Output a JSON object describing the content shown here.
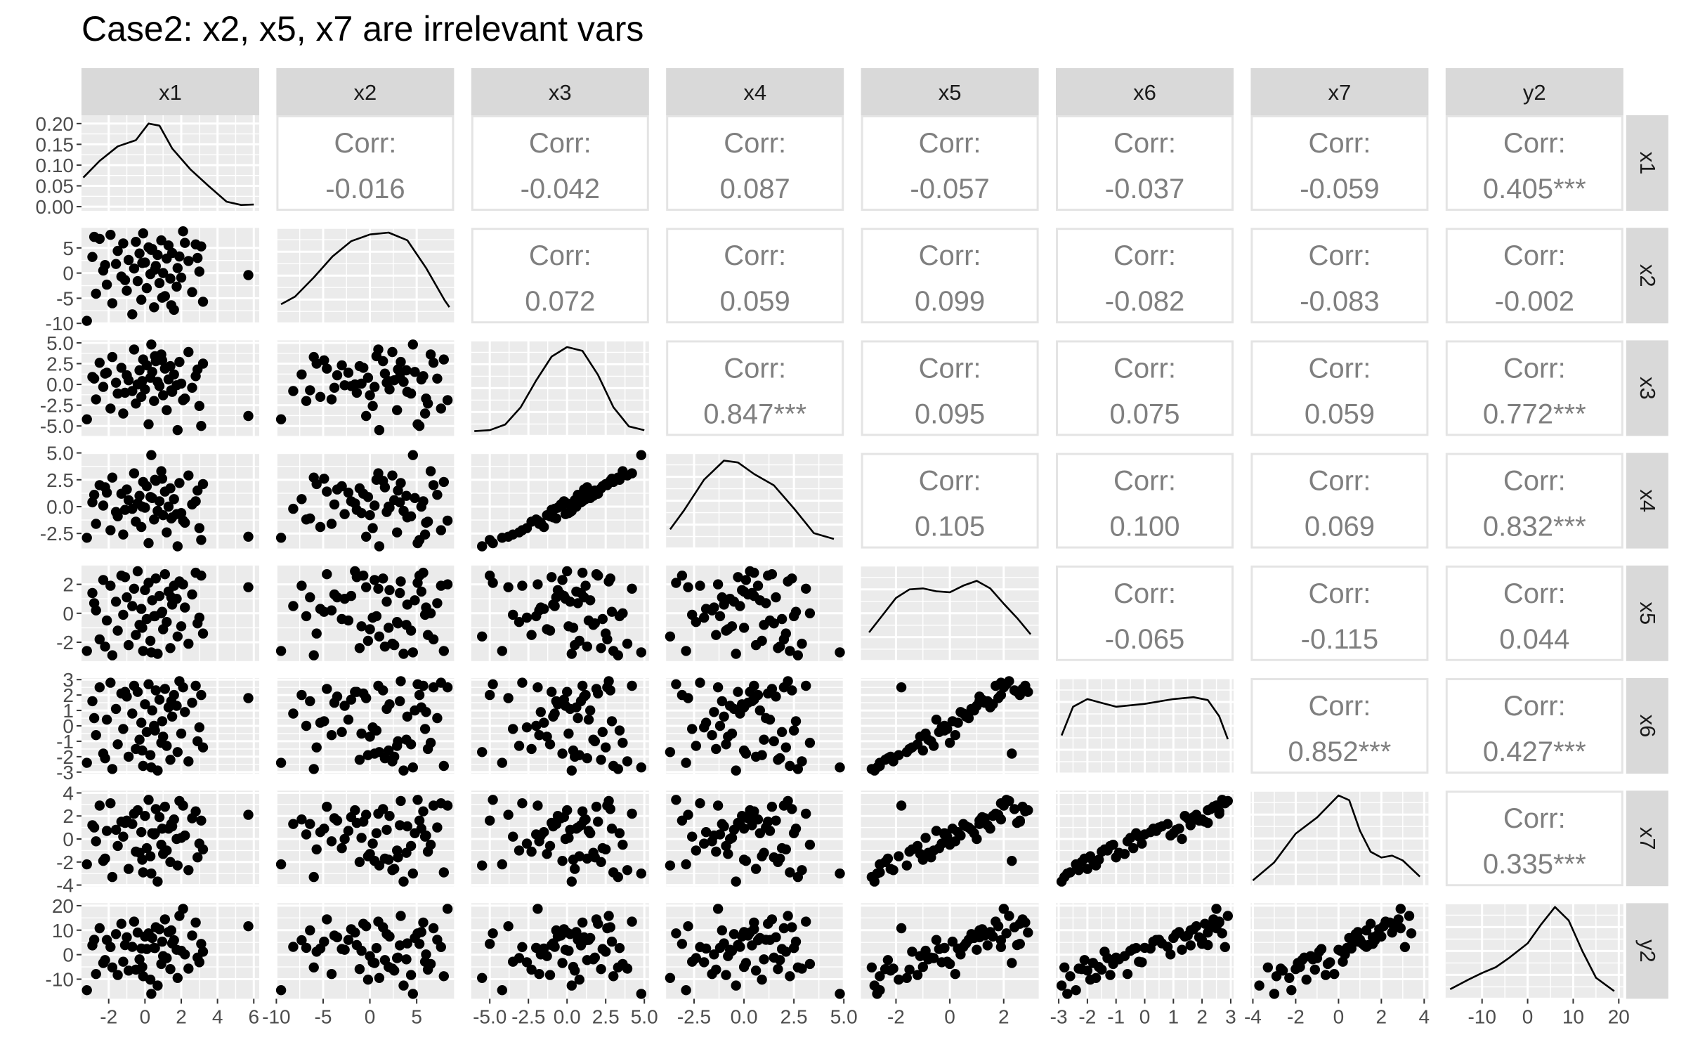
{
  "title": "Case2: x2, x5, x7 are irrelevant vars",
  "chart_data": {
    "type": "scatter",
    "subtype": "pairs-matrix",
    "variables": [
      "x1",
      "x2",
      "x3",
      "x4",
      "x5",
      "x6",
      "x7",
      "y2"
    ],
    "diagonal": "density",
    "upper": "correlation",
    "lower": "scatter",
    "grid": true,
    "point_color": "#000000",
    "panel_background": "#ebebeb",
    "strip_background": "#d9d9d9",
    "corr_label": "Corr:",
    "correlations": [
      {
        "row": "x1",
        "col": "x2",
        "value": "-0.016"
      },
      {
        "row": "x1",
        "col": "x3",
        "value": "-0.042"
      },
      {
        "row": "x1",
        "col": "x4",
        "value": "0.087"
      },
      {
        "row": "x1",
        "col": "x5",
        "value": "-0.057"
      },
      {
        "row": "x1",
        "col": "x6",
        "value": "-0.037"
      },
      {
        "row": "x1",
        "col": "x7",
        "value": "-0.059"
      },
      {
        "row": "x1",
        "col": "y2",
        "value": "0.405***"
      },
      {
        "row": "x2",
        "col": "x3",
        "value": "0.072"
      },
      {
        "row": "x2",
        "col": "x4",
        "value": "0.059"
      },
      {
        "row": "x2",
        "col": "x5",
        "value": "0.099"
      },
      {
        "row": "x2",
        "col": "x6",
        "value": "-0.082"
      },
      {
        "row": "x2",
        "col": "x7",
        "value": "-0.083"
      },
      {
        "row": "x2",
        "col": "y2",
        "value": "-0.002"
      },
      {
        "row": "x3",
        "col": "x4",
        "value": "0.847***"
      },
      {
        "row": "x3",
        "col": "x5",
        "value": "0.095"
      },
      {
        "row": "x3",
        "col": "x6",
        "value": "0.075"
      },
      {
        "row": "x3",
        "col": "x7",
        "value": "0.059"
      },
      {
        "row": "x3",
        "col": "y2",
        "value": "0.772***"
      },
      {
        "row": "x4",
        "col": "x5",
        "value": "0.105"
      },
      {
        "row": "x4",
        "col": "x6",
        "value": "0.100"
      },
      {
        "row": "x4",
        "col": "x7",
        "value": "0.069"
      },
      {
        "row": "x4",
        "col": "y2",
        "value": "0.832***"
      },
      {
        "row": "x5",
        "col": "x6",
        "value": "-0.065"
      },
      {
        "row": "x5",
        "col": "x7",
        "value": "-0.115"
      },
      {
        "row": "x5",
        "col": "y2",
        "value": "0.044"
      },
      {
        "row": "x6",
        "col": "x7",
        "value": "0.852***"
      },
      {
        "row": "x6",
        "col": "y2",
        "value": "0.427***"
      },
      {
        "row": "x7",
        "col": "y2",
        "value": "0.335***"
      }
    ],
    "x_axes": [
      {
        "var": "x1",
        "lim": [
          -3.5,
          6.3
        ],
        "ticks": [
          -2,
          0,
          2,
          4,
          6
        ],
        "labels": [
          "-2",
          "0",
          "2",
          "4",
          "6"
        ]
      },
      {
        "var": "x2",
        "lim": [
          -10,
          9
        ],
        "ticks": [
          -10,
          -5,
          0,
          5
        ],
        "labels": [
          "-10",
          "-5",
          "0",
          "5"
        ]
      },
      {
        "var": "x3",
        "lim": [
          -6.2,
          5.3
        ],
        "ticks": [
          -5,
          -2.5,
          0,
          2.5,
          5
        ],
        "labels": [
          "-5.0",
          "-2.5",
          "0.0",
          "2.5",
          "5.0"
        ]
      },
      {
        "var": "x4",
        "lim": [
          -3.9,
          5.0
        ],
        "ticks": [
          -2.5,
          0,
          2.5,
          5
        ],
        "labels": [
          "-2.5",
          "0.0",
          "2.5",
          "5.0"
        ]
      },
      {
        "var": "x5",
        "lim": [
          -3.3,
          3.3
        ],
        "ticks": [
          -2,
          0,
          2
        ],
        "labels": [
          "-2",
          "0",
          "2"
        ]
      },
      {
        "var": "x6",
        "lim": [
          -3.1,
          3.1
        ],
        "ticks": [
          -3,
          -2,
          -1,
          0,
          1,
          2,
          3
        ],
        "labels": [
          "-3",
          "-2",
          "-1",
          "0",
          "1",
          "2",
          "3"
        ]
      },
      {
        "var": "x7",
        "lim": [
          -4.1,
          4.2
        ],
        "ticks": [
          -4,
          -2,
          0,
          2,
          4
        ],
        "labels": [
          "-4",
          "-2",
          "0",
          "2",
          "4"
        ]
      },
      {
        "var": "y2",
        "lim": [
          -18,
          21
        ],
        "ticks": [
          -10,
          0,
          10,
          20
        ],
        "labels": [
          "-10",
          "0",
          "10",
          "20"
        ]
      }
    ],
    "y_axes": [
      {
        "var": "x1",
        "lim": [
          -0.01,
          0.22
        ],
        "ticks": [
          0,
          0.05,
          0.1,
          0.15,
          0.2
        ],
        "labels": [
          "0.00",
          "0.05",
          "0.10",
          "0.15",
          "0.20"
        ]
      },
      {
        "var": "x2",
        "lim": [
          -10,
          9
        ],
        "ticks": [
          -10,
          -5,
          0,
          5
        ],
        "labels": [
          "-10",
          "-5",
          "0",
          "5"
        ]
      },
      {
        "var": "x3",
        "lim": [
          -6.2,
          5.3
        ],
        "ticks": [
          -5,
          -2.5,
          0,
          2.5,
          5
        ],
        "labels": [
          "-5.0",
          "-2.5",
          "0.0",
          "2.5",
          "5.0"
        ]
      },
      {
        "var": "x4",
        "lim": [
          -3.9,
          5.0
        ],
        "ticks": [
          -2.5,
          0,
          2.5,
          5
        ],
        "labels": [
          "-2.5",
          "0.0",
          "2.5",
          "5.0"
        ]
      },
      {
        "var": "x5",
        "lim": [
          -3.3,
          3.3
        ],
        "ticks": [
          -2,
          0,
          2
        ],
        "labels": [
          "-2",
          "0",
          "2"
        ]
      },
      {
        "var": "x6",
        "lim": [
          -3.1,
          3.1
        ],
        "ticks": [
          -3,
          -2,
          -1,
          0,
          1,
          2,
          3
        ],
        "labels": [
          "-3",
          "-2",
          "-1",
          "0",
          "1",
          "2",
          "3"
        ]
      },
      {
        "var": "x7",
        "lim": [
          -4.1,
          4.2
        ],
        "ticks": [
          -4,
          -2,
          0,
          2,
          4
        ],
        "labels": [
          "-4",
          "-2",
          "0",
          "2",
          "4"
        ]
      },
      {
        "var": "y2",
        "lim": [
          -18,
          21
        ],
        "ticks": [
          -10,
          0,
          10,
          20
        ],
        "labels": [
          "-10",
          "0",
          "10",
          "20"
        ]
      }
    ],
    "densities": [
      {
        "var": "x1",
        "ylim": [
          -0.01,
          0.22
        ],
        "x": [
          -3.4,
          -2.5,
          -1.5,
          -0.5,
          0.2,
          0.8,
          1.5,
          2.5,
          3.5,
          4.5,
          5.3,
          6.0
        ],
        "y": [
          0.07,
          0.11,
          0.145,
          0.16,
          0.2,
          0.195,
          0.14,
          0.09,
          0.05,
          0.012,
          0.004,
          0.005
        ]
      },
      {
        "var": "x2",
        "x": [
          -9.5,
          -8,
          -6,
          -4,
          -2,
          0,
          2,
          4,
          6,
          8,
          8.5
        ],
        "y": [
          0.2,
          0.28,
          0.48,
          0.7,
          0.86,
          0.93,
          0.95,
          0.87,
          0.58,
          0.24,
          0.17
        ]
      },
      {
        "var": "x3",
        "x": [
          -6,
          -5,
          -4,
          -3,
          -2,
          -1,
          0,
          1,
          2,
          3,
          4,
          5
        ],
        "y": [
          0.05,
          0.06,
          0.12,
          0.3,
          0.58,
          0.83,
          0.93,
          0.89,
          0.64,
          0.3,
          0.1,
          0.06
        ]
      },
      {
        "var": "x4",
        "x": [
          -3.7,
          -3,
          -2,
          -1,
          -0.3,
          0.5,
          1.5,
          2.5,
          3.5,
          4.5
        ],
        "y": [
          0.2,
          0.4,
          0.72,
          0.92,
          0.9,
          0.78,
          0.66,
          0.42,
          0.16,
          0.1
        ]
      },
      {
        "var": "x5",
        "x": [
          -3,
          -2.5,
          -2,
          -1.5,
          -1,
          -0.5,
          0,
          0.5,
          1,
          1.5,
          2,
          2.5,
          3
        ],
        "y": [
          0.3,
          0.48,
          0.66,
          0.75,
          0.76,
          0.73,
          0.72,
          0.79,
          0.84,
          0.76,
          0.6,
          0.45,
          0.28
        ]
      },
      {
        "var": "x6",
        "x": [
          -2.9,
          -2.5,
          -2,
          -1.5,
          -1,
          0,
          1,
          1.7,
          2.2,
          2.6,
          2.9
        ],
        "y": [
          0.4,
          0.7,
          0.78,
          0.74,
          0.7,
          0.73,
          0.78,
          0.8,
          0.77,
          0.6,
          0.36
        ]
      },
      {
        "var": "x7",
        "x": [
          -4,
          -3,
          -2,
          -1,
          0,
          0.5,
          1,
          1.5,
          2,
          2.5,
          3,
          3.8
        ],
        "y": [
          0.06,
          0.25,
          0.55,
          0.72,
          0.95,
          0.9,
          0.58,
          0.36,
          0.3,
          0.32,
          0.27,
          0.1
        ]
      },
      {
        "var": "y2",
        "x": [
          -17,
          -13,
          -10,
          -7,
          -4,
          0,
          3,
          6,
          9,
          12,
          15,
          19
        ],
        "y": [
          0.1,
          0.2,
          0.27,
          0.33,
          0.43,
          0.58,
          0.78,
          0.96,
          0.82,
          0.5,
          0.22,
          0.08
        ]
      }
    ],
    "sample": {
      "x1": [
        -3.2,
        -2.9,
        -2.7,
        -2.5,
        -2.3,
        -2.1,
        -1.9,
        -1.8,
        -1.6,
        -1.5,
        -1.3,
        -1.2,
        -1.0,
        -0.9,
        -0.7,
        -0.6,
        -0.5,
        -0.4,
        -0.3,
        -0.2,
        -0.1,
        0.0,
        0.1,
        0.2,
        0.3,
        0.4,
        0.5,
        0.6,
        0.7,
        0.8,
        0.9,
        1.0,
        1.1,
        1.2,
        1.3,
        1.4,
        1.5,
        1.6,
        1.8,
        1.9,
        2.0,
        2.2,
        2.4,
        2.6,
        2.8,
        3.0,
        3.2,
        -2.8,
        -1.1,
        0.35,
        1.75,
        2.9,
        5.7,
        -0.15,
        0.95,
        2.1,
        -2.2,
        1.45,
        0.55,
        3.1
      ],
      "x2": [
        -9.5,
        3.2,
        -4.1,
        6.8,
        0.5,
        -2.3,
        7.6,
        -6.0,
        1.8,
        4.4,
        -0.7,
        5.9,
        -3.5,
        2.6,
        -8.2,
        0.9,
        6.2,
        -1.6,
        3.9,
        -5.3,
        7.9,
        2.1,
        -3.0,
        5.1,
        -0.2,
        4.8,
        -6.8,
        1.4,
        3.6,
        -2.0,
        6.5,
        0.0,
        -4.6,
        2.9,
        5.5,
        -1.1,
        4.0,
        -7.3,
        1.0,
        3.3,
        -0.9,
        6.0,
        2.4,
        -3.8,
        5.7,
        0.3,
        -5.7,
        7.2,
        -1.4,
        4.6,
        -2.7,
        3.0,
        -0.4,
        2.0,
        -4.9,
        8.3,
        1.6,
        -6.4,
        0.7,
        5.3
      ],
      "x3": [
        -4.2,
        0.9,
        -1.8,
        2.6,
        -0.3,
        1.4,
        -2.9,
        3.3,
        0.2,
        -1.1,
        2.0,
        -3.5,
        1.1,
        0.5,
        -0.8,
        4.2,
        -2.3,
        0.0,
        1.7,
        -1.5,
        3.0,
        -0.6,
        2.3,
        -4.8,
        0.8,
        1.5,
        -2.0,
        2.8,
        0.3,
        -0.2,
        3.6,
        -1.3,
        1.9,
        -3.1,
        0.6,
        2.2,
        -0.9,
        1.2,
        -5.5,
        2.7,
        0.1,
        -1.7,
        3.9,
        -0.4,
        1.0,
        -2.6,
        2.5,
        0.7,
        -1.0,
        4.8,
        -0.1,
        1.8,
        -3.8,
        0.4,
        2.9,
        -1.9,
        1.3,
        -0.7,
        3.4,
        -5.0
      ],
      "x4": [
        -2.9,
        0.4,
        -1.6,
        2.0,
        0.1,
        1.3,
        -2.2,
        2.7,
        -0.5,
        -0.9,
        1.2,
        -2.6,
        1.6,
        0.6,
        -0.2,
        3.1,
        -1.4,
        0.3,
        1.0,
        -1.9,
        2.3,
        -0.1,
        1.9,
        -3.4,
        0.9,
        0.8,
        -1.2,
        2.4,
        -0.4,
        0.5,
        3.3,
        -0.8,
        1.4,
        -2.4,
        0.0,
        1.7,
        -1.0,
        0.7,
        -3.7,
        2.2,
        -0.6,
        -1.5,
        2.9,
        0.2,
        0.5,
        -2.0,
        2.1,
        1.1,
        -0.3,
        4.8,
        -0.7,
        1.5,
        -2.8,
        0.0,
        2.6,
        -1.3,
        1.8,
        -1.1,
        2.5,
        -3.1
      ],
      "x5": [
        -2.6,
        1.4,
        0.2,
        -1.8,
        2.3,
        -0.5,
        1.9,
        -2.9,
        0.8,
        -1.2,
        2.6,
        -0.1,
        1.1,
        -2.2,
        0.5,
        1.7,
        -1.5,
        2.9,
        -0.8,
        0.3,
        -2.6,
        1.6,
        -0.4,
        2.1,
        -1.9,
        0.9,
        -0.2,
        2.4,
        -2.8,
        1.2,
        0.0,
        -1.1,
        2.7,
        -0.6,
        1.5,
        -2.4,
        0.6,
        1.9,
        -1.6,
        2.2,
        -0.9,
        0.4,
        -2.1,
        1.3,
        2.8,
        -0.3,
        -1.4,
        0.7,
        2.5,
        -2.7,
        1.0,
        -0.7,
        1.8,
        -1.0,
        0.1,
        2.0,
        -2.3,
        1.1,
        -0.2,
        2.6
      ],
      "x6": [
        -2.4,
        1.6,
        -0.6,
        2.5,
        -1.8,
        0.4,
        2.8,
        -2.8,
        1.1,
        -1.2,
        2.1,
        -0.2,
        1.9,
        -2.0,
        0.8,
        2.6,
        -1.5,
        2.2,
        -0.9,
        0.2,
        -2.6,
        1.4,
        -0.4,
        2.7,
        -1.9,
        1.0,
        0.0,
        2.3,
        -2.9,
        1.7,
        -1.1,
        -0.7,
        2.4,
        -1.3,
        1.2,
        -2.2,
        0.6,
        2.0,
        -1.7,
        2.9,
        -0.5,
        0.9,
        -2.3,
        1.5,
        2.6,
        -0.1,
        -1.4,
        0.5,
        2.2,
        -2.7,
        1.3,
        -1.0,
        1.8,
        -1.6,
        0.3,
        2.5,
        -2.1,
        1.6,
        -0.3,
        2.0
      ],
      "x7": [
        -2.2,
        1.2,
        -0.2,
        2.9,
        -1.9,
        0.7,
        3.1,
        -3.3,
        0.8,
        -0.6,
        1.5,
        0.2,
        1.6,
        -2.6,
        1.3,
        2.2,
        -1.1,
        2.5,
        -1.2,
        0.6,
        -2.9,
        2.0,
        -0.8,
        3.4,
        -1.5,
        0.5,
        0.4,
        2.6,
        -3.7,
        1.9,
        -0.5,
        -1.3,
        2.8,
        -1.0,
        0.9,
        -2.0,
        1.1,
        1.7,
        -2.3,
        3.3,
        0.1,
        0.3,
        -2.7,
        1.8,
        2.4,
        -0.4,
        -0.9,
        1.0,
        1.4,
        -3.0,
        0.0,
        -1.6,
        2.1,
        -1.8,
        0.9,
        2.9,
        -1.7,
        1.3,
        0.5,
        1.6
      ],
      "y2": [
        -14.5,
        3.8,
        -7.9,
        10.8,
        -3.4,
        6.0,
        3.1,
        -5.2,
        8.4,
        -8.3,
        12.6,
        -2.9,
        7.1,
        -6.5,
        3.2,
        13.5,
        -6.1,
        9.0,
        -1.9,
        2.5,
        -8.8,
        7.4,
        2.3,
        8.7,
        -10.2,
        6.8,
        2.8,
        11.2,
        -12.6,
        10.4,
        -3.8,
        -0.6,
        14.4,
        -1.4,
        9.2,
        -5.9,
        4.6,
        5.9,
        -9.5,
        15.8,
        1.6,
        0.1,
        -5.7,
        7.8,
        13.1,
        -3.1,
        1.2,
        6.1,
        3.9,
        -16.0,
        2.0,
        -1.2,
        11.6,
        -5.0,
        5.3,
        18.7,
        -2.2,
        9.9,
        2.7,
        4.4
      ]
    }
  }
}
